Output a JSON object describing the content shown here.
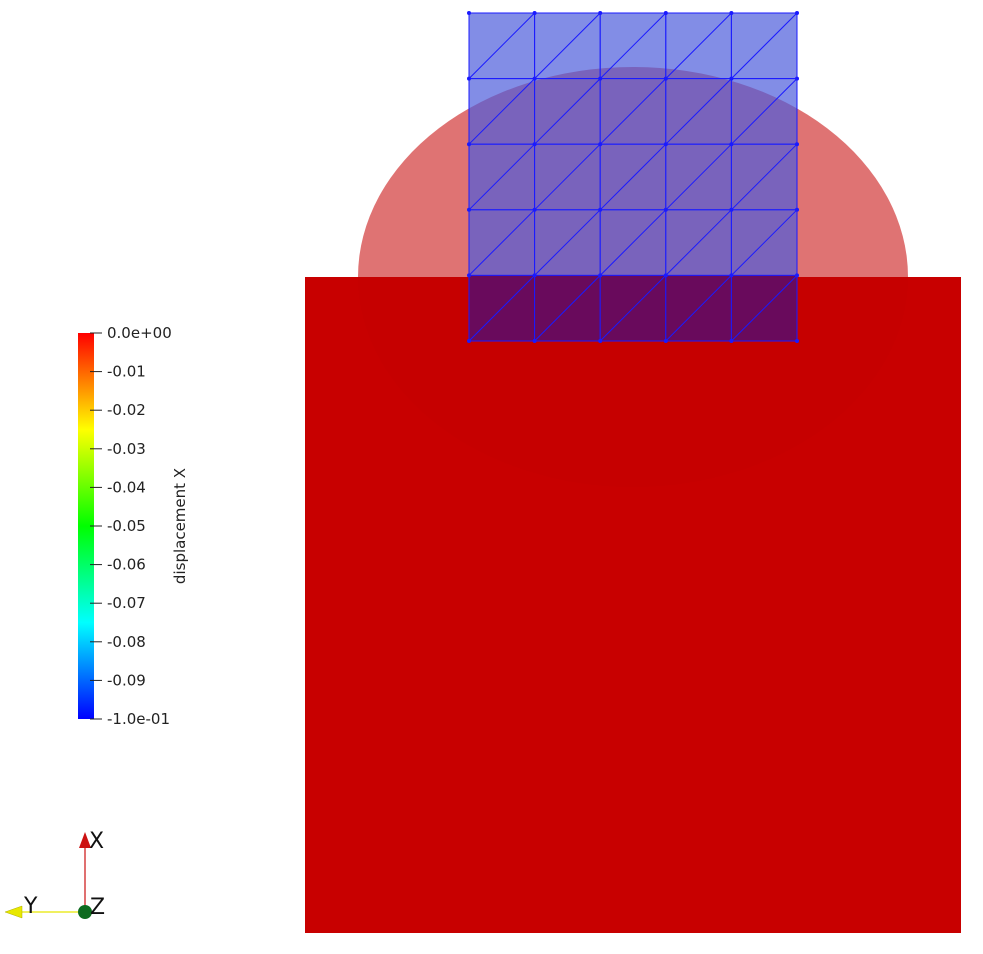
{
  "viewer": {
    "background_color": "#ffffff",
    "scalar_field": "displacement X"
  },
  "color_legend": {
    "title": "displacement X",
    "range": [
      -0.1,
      0.0
    ],
    "colormap": [
      "#0000ff",
      "#00ffff",
      "#00ff00",
      "#ffff00",
      "#ff0000"
    ],
    "ticks": [
      {
        "value": 0.0,
        "label": "0.0e+00"
      },
      {
        "value": -0.01,
        "label": "-0.01"
      },
      {
        "value": -0.02,
        "label": "-0.02"
      },
      {
        "value": -0.03,
        "label": "-0.03"
      },
      {
        "value": -0.04,
        "label": "-0.04"
      },
      {
        "value": -0.05,
        "label": "-0.05"
      },
      {
        "value": -0.06,
        "label": "-0.06"
      },
      {
        "value": -0.07,
        "label": "-0.07"
      },
      {
        "value": -0.08,
        "label": "-0.08"
      },
      {
        "value": -0.09,
        "label": "-0.09"
      },
      {
        "value": -0.1,
        "label": "-1.0e-01"
      }
    ]
  },
  "base_block": {
    "field_value": 0.0,
    "color": "#c80000"
  },
  "top_mesh": {
    "rows": 5,
    "cols": 5,
    "triangulated": true,
    "fill_color": "#4d5cdb",
    "edge_color": "#1a1aff",
    "overlap_color": "#690a5c"
  },
  "orientation_axes": {
    "x": {
      "label": "X",
      "color": "#cc1111"
    },
    "y": {
      "label": "Y",
      "color": "#e8e800"
    },
    "z": {
      "label": "Z",
      "color": "#0e6b1f"
    }
  }
}
